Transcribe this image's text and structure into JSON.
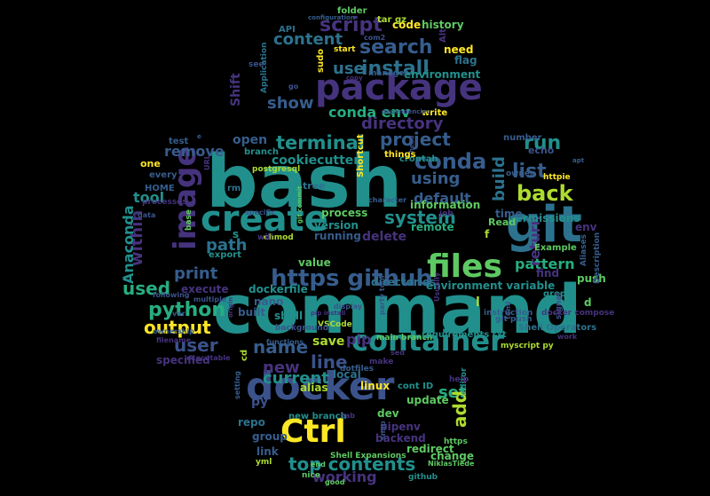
{
  "wordcloud": {
    "background": "#000000",
    "palette": {
      "purple": "#46337e",
      "indigo": "#3b528b",
      "blue": "#365d8d",
      "steel": "#2c728e",
      "teal": "#21908d",
      "sea": "#27ad81",
      "green": "#5ec962",
      "lime": "#addc30",
      "yellow": "#fde725"
    },
    "words": [
      {
        "text": "bash",
        "color": "teal"
      },
      {
        "text": "command",
        "color": "teal"
      },
      {
        "text": "package",
        "color": "purple"
      },
      {
        "text": "docker",
        "color": "indigo"
      },
      {
        "text": "git",
        "color": "steel"
      },
      {
        "text": "create",
        "color": "teal"
      },
      {
        "text": "Ctrl",
        "color": "yellow"
      },
      {
        "text": "container",
        "color": "teal"
      },
      {
        "text": "image",
        "color": "purple"
      },
      {
        "text": "files",
        "color": "green"
      },
      {
        "text": "https github",
        "color": "blue"
      },
      {
        "text": "top contents",
        "color": "teal"
      },
      {
        "text": "search",
        "color": "blue"
      },
      {
        "text": "install",
        "color": "steel"
      },
      {
        "text": "script",
        "color": "purple"
      },
      {
        "text": "conda",
        "color": "blue"
      },
      {
        "text": "terminal",
        "color": "teal"
      },
      {
        "text": "project",
        "color": "blue"
      },
      {
        "text": "back",
        "color": "lime"
      },
      {
        "text": "list",
        "color": "blue"
      },
      {
        "text": "run",
        "color": "teal"
      },
      {
        "text": "system",
        "color": "teal"
      },
      {
        "text": "python",
        "color": "sea"
      },
      {
        "text": "name",
        "color": "blue"
      },
      {
        "text": "line",
        "color": "indigo"
      },
      {
        "text": "new",
        "color": "purple"
      },
      {
        "text": "current",
        "color": "teal"
      },
      {
        "text": "output",
        "color": "yellow"
      },
      {
        "text": "user",
        "color": "indigo"
      },
      {
        "text": "print",
        "color": "blue"
      },
      {
        "text": "used",
        "color": "sea"
      },
      {
        "text": "path",
        "color": "steel"
      },
      {
        "text": "directory",
        "color": "purple"
      },
      {
        "text": "show",
        "color": "blue"
      },
      {
        "text": "use",
        "color": "steel"
      },
      {
        "text": "content",
        "color": "steel"
      },
      {
        "text": "conda env",
        "color": "sea"
      },
      {
        "text": "using",
        "color": "blue"
      },
      {
        "text": "default",
        "color": "blue"
      },
      {
        "text": "build",
        "color": "steel"
      },
      {
        "text": "pattern",
        "color": "sea"
      },
      {
        "text": "return",
        "color": "purple"
      },
      {
        "text": "within",
        "color": "purple"
      },
      {
        "text": "Anaconda",
        "color": "teal"
      },
      {
        "text": "set",
        "color": "sea"
      },
      {
        "text": "add",
        "color": "lime"
      },
      {
        "text": "pip",
        "color": "purple"
      },
      {
        "text": "save",
        "color": "lime"
      },
      {
        "text": "working",
        "color": "purple"
      },
      {
        "text": "delete",
        "color": "purple"
      },
      {
        "text": "remove",
        "color": "blue"
      },
      {
        "text": "tool",
        "color": "teal"
      },
      {
        "text": "open",
        "color": "blue"
      },
      {
        "text": "cookiecutter",
        "color": "teal"
      },
      {
        "text": "environment variable",
        "color": "teal"
      },
      {
        "text": "value",
        "color": "green"
      },
      {
        "text": "directories",
        "color": "steel"
      },
      {
        "text": "dockerfile",
        "color": "teal"
      },
      {
        "text": "execute",
        "color": "purple"
      },
      {
        "text": "specified",
        "color": "purple"
      },
      {
        "text": "process",
        "color": "green"
      },
      {
        "text": "version",
        "color": "teal"
      },
      {
        "text": "running",
        "color": "blue"
      },
      {
        "text": "information",
        "color": "green"
      },
      {
        "text": "remote",
        "color": "sea"
      },
      {
        "text": "history",
        "color": "green"
      },
      {
        "text": "code",
        "color": "yellow"
      },
      {
        "text": "flag",
        "color": "steel"
      },
      {
        "text": "need",
        "color": "yellow"
      },
      {
        "text": "environment",
        "color": "teal"
      },
      {
        "text": "Shift",
        "color": "purple"
      },
      {
        "text": "env",
        "color": "purple"
      },
      {
        "text": "echo",
        "color": "indigo"
      },
      {
        "text": "permissions",
        "color": "teal"
      },
      {
        "text": "time",
        "color": "blue"
      },
      {
        "text": "Read",
        "color": "green"
      },
      {
        "text": "find",
        "color": "purple"
      },
      {
        "text": "push",
        "color": "green"
      },
      {
        "text": "linux",
        "color": "yellow"
      },
      {
        "text": "update",
        "color": "green"
      },
      {
        "text": "dev",
        "color": "green"
      },
      {
        "text": "pipenv",
        "color": "purple"
      },
      {
        "text": "backend",
        "color": "purple"
      },
      {
        "text": "redirect",
        "color": "green"
      },
      {
        "text": "change",
        "color": "green"
      },
      {
        "text": "link",
        "color": "blue"
      },
      {
        "text": "group",
        "color": "blue"
      },
      {
        "text": "repo",
        "color": "steel"
      },
      {
        "text": "py",
        "color": "indigo"
      },
      {
        "text": "alias",
        "color": "lime"
      },
      {
        "text": "local",
        "color": "steel"
      },
      {
        "text": "built",
        "color": "blue"
      },
      {
        "text": "shell",
        "color": "teal"
      },
      {
        "text": "nano",
        "color": "blue"
      },
      {
        "text": "tree",
        "color": "steel"
      },
      {
        "text": "postgresql",
        "color": "lime"
      },
      {
        "text": "Shortcut",
        "color": "yellow"
      },
      {
        "text": "crontab",
        "color": "teal"
      },
      {
        "text": "things",
        "color": "yellow"
      },
      {
        "text": "write",
        "color": "yellow"
      },
      {
        "text": "sudo",
        "color": "yellow"
      },
      {
        "text": "Application",
        "color": "steel"
      },
      {
        "text": "API",
        "color": "steel"
      },
      {
        "text": "folder",
        "color": "green"
      },
      {
        "text": "tar gz",
        "color": "lime"
      },
      {
        "text": "Alt",
        "color": "purple"
      },
      {
        "text": "test",
        "color": "blue"
      },
      {
        "text": "one",
        "color": "yellow"
      },
      {
        "text": "every",
        "color": "blue"
      },
      {
        "text": "HOME",
        "color": "blue"
      },
      {
        "text": "branch",
        "color": "teal"
      },
      {
        "text": "rm",
        "color": "steel"
      },
      {
        "text": "export",
        "color": "teal"
      },
      {
        "text": "cont ID",
        "color": "teal"
      },
      {
        "text": "new branch",
        "color": "teal"
      },
      {
        "text": "Example",
        "color": "green"
      },
      {
        "text": "grep",
        "color": "teal"
      },
      {
        "text": "number",
        "color": "blue"
      },
      {
        "text": "owner",
        "color": "blue"
      },
      {
        "text": "httpie",
        "color": "yellow"
      },
      {
        "text": "git push",
        "color": "blue"
      },
      {
        "text": "editor",
        "color": "teal"
      },
      {
        "text": "https",
        "color": "green"
      },
      {
        "text": "nice",
        "color": "green"
      },
      {
        "text": "github",
        "color": "teal"
      },
      {
        "text": "Shell Expansions",
        "color": "green"
      },
      {
        "text": "chmod",
        "color": "lime"
      },
      {
        "text": "job",
        "color": "purple"
      },
      {
        "text": "will",
        "color": "purple"
      },
      {
        "text": "yml",
        "color": "lime"
      },
      {
        "text": "base",
        "color": "green"
      },
      {
        "text": "processes",
        "color": "purple"
      },
      {
        "text": "Aliases",
        "color": "blue"
      },
      {
        "text": "Description",
        "color": "blue"
      },
      {
        "text": "signal",
        "color": "indigo"
      },
      {
        "text": "docker compose",
        "color": "purple"
      },
      {
        "text": "instruction",
        "color": "blue"
      },
      {
        "text": "Shell Operators",
        "color": "steel"
      },
      {
        "text": "make",
        "color": "purple"
      },
      {
        "text": "main branch",
        "color": "green"
      },
      {
        "text": "myscript py",
        "color": "lime"
      },
      {
        "text": "dotfiles",
        "color": "blue"
      },
      {
        "text": "VSCode",
        "color": "lime"
      },
      {
        "text": "good",
        "color": "green"
      },
      {
        "text": "NiklasTiede",
        "color": "green"
      },
      {
        "text": "setting",
        "color": "blue"
      },
      {
        "text": "requirements txt",
        "color": "teal"
      },
      {
        "text": "character",
        "color": "blue"
      },
      {
        "text": "manager",
        "color": "blue"
      },
      {
        "text": "start",
        "color": "yellow"
      },
      {
        "text": "copy",
        "color": "purple"
      },
      {
        "text": "dependencies",
        "color": "indigo"
      },
      {
        "text": "configuration",
        "color": "blue"
      },
      {
        "text": "com2",
        "color": "indigo"
      },
      {
        "text": "go",
        "color": "indigo"
      },
      {
        "text": "see",
        "color": "indigo"
      },
      {
        "text": "s",
        "color": "teal"
      },
      {
        "text": "f",
        "color": "lime"
      },
      {
        "text": "d",
        "color": "green"
      },
      {
        "text": "l",
        "color": "lime"
      },
      {
        "text": "e",
        "color": "blue"
      },
      {
        "text": "background",
        "color": "indigo"
      },
      {
        "text": "functions",
        "color": "blue"
      },
      {
        "text": "executable",
        "color": "purple"
      },
      {
        "text": "filename",
        "color": "purple"
      },
      {
        "text": "ownership",
        "color": "blue"
      },
      {
        "text": "var",
        "color": "blue"
      },
      {
        "text": "data",
        "color": "indigo"
      },
      {
        "text": "specific",
        "color": "indigo"
      },
      {
        "text": "following",
        "color": "indigo"
      },
      {
        "text": "multiple",
        "color": "indigo"
      },
      {
        "text": "apt",
        "color": "blue"
      },
      {
        "text": "head",
        "color": "indigo"
      },
      {
        "text": "snap",
        "color": "indigo"
      },
      {
        "text": "URL",
        "color": "purple"
      },
      {
        "text": "help",
        "color": "purple"
      },
      {
        "text": "end",
        "color": "green"
      },
      {
        "text": "cd",
        "color": "lime"
      },
      {
        "text": "sed",
        "color": "purple"
      },
      {
        "text": "pip install",
        "color": "purple"
      },
      {
        "text": "party tool",
        "color": "indigo"
      },
      {
        "text": "Usually",
        "color": "purple"
      },
      {
        "text": "work",
        "color": "purple"
      },
      {
        "text": "tab",
        "color": "purple"
      },
      {
        "text": "git commit",
        "color": "green"
      },
      {
        "text": "origin",
        "color": "purple"
      },
      {
        "text": "display",
        "color": "indigo"
      },
      {
        "text": "toml",
        "color": "indigo"
      },
      {
        "text": "Spasco",
        "color": "indigo"
      }
    ]
  }
}
